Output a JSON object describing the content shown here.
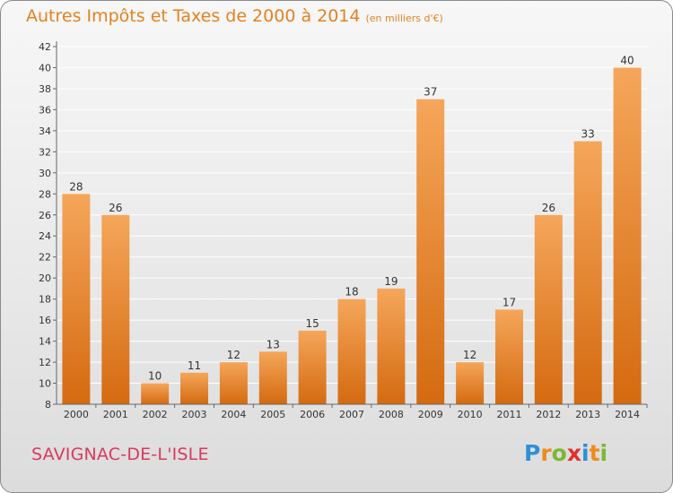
{
  "title": "Autres Impôts et Taxes de 2000 à 2014",
  "title_unit": "(en milliers d'€)",
  "commune": "SAVIGNAC-DE-L'ISLE",
  "logo": {
    "text": "Proxiti",
    "letter_colors": [
      "#2f8fd6",
      "#f08a1e",
      "#7cb82f",
      "#e2312d",
      "#2f8fd6",
      "#f08a1e",
      "#7cb82f"
    ]
  },
  "colors": {
    "bar_light": "#f5a65a",
    "bar_dark": "#d46a10",
    "axis": "#666666",
    "grid": "#ffffff",
    "title": "#e2821f",
    "commune": "#d83a5e"
  },
  "chart_data": {
    "type": "bar",
    "categories": [
      "2000",
      "2001",
      "2002",
      "2003",
      "2004",
      "2005",
      "2006",
      "2007",
      "2008",
      "2009",
      "2010",
      "2011",
      "2012",
      "2013",
      "2014"
    ],
    "values": [
      28,
      26,
      10,
      11,
      12,
      13,
      15,
      18,
      19,
      37,
      12,
      17,
      26,
      33,
      40
    ],
    "ylim": [
      8,
      42
    ],
    "yticks": [
      8,
      10,
      12,
      14,
      16,
      18,
      20,
      22,
      24,
      26,
      28,
      30,
      32,
      34,
      36,
      38,
      40,
      42
    ],
    "grid": true,
    "data_labels": true
  }
}
